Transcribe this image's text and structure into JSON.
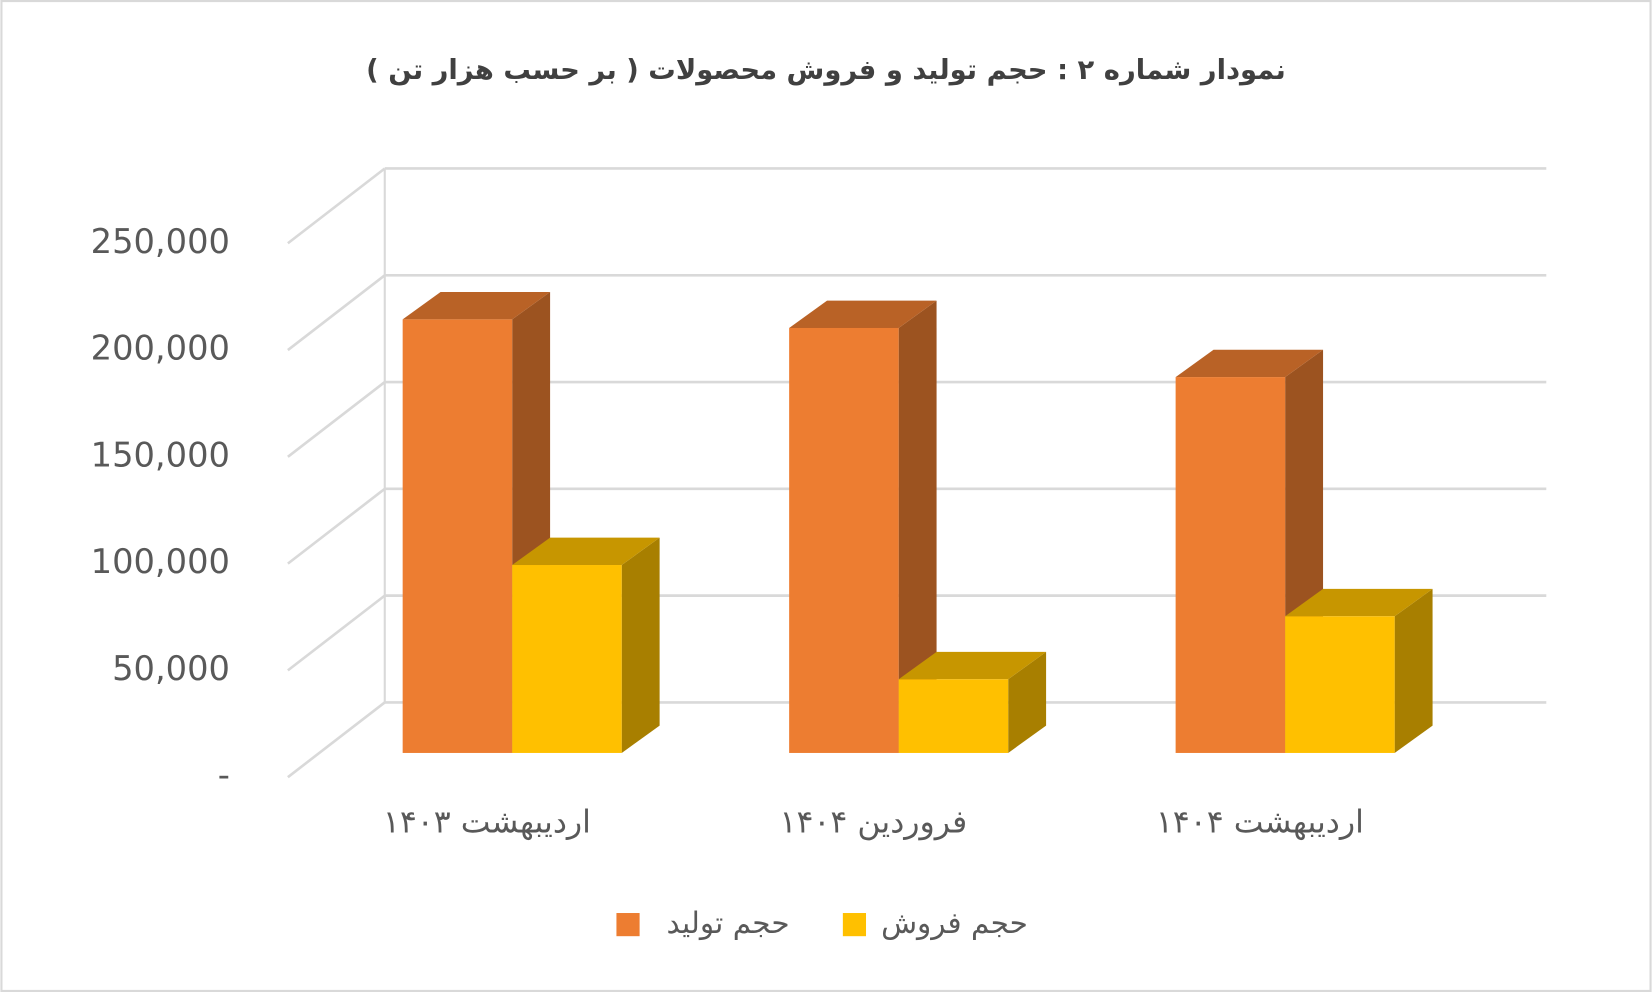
{
  "chart_data": {
    "type": "bar3d",
    "title": "نمودار شماره ۲ : حجم  تولید و فروش محصولات ( بر حسب هزار تن )",
    "categories": [
      "اردیبهشت ۱۴۰۳",
      "فروردین ۱۴۰۴",
      "اردیبهشت ۱۴۰۴"
    ],
    "series": [
      {
        "name": "حجم تولید",
        "color": "#ed7d31",
        "values": [
          203000,
          199000,
          176000
        ]
      },
      {
        "name": "حجم فروش",
        "color": "#ffc000",
        "values": [
          88000,
          34500,
          64000
        ]
      }
    ],
    "ylim": [
      0,
      250000
    ],
    "yticks": [
      {
        "value": 0,
        "label": "-"
      },
      {
        "value": 50000,
        "label": "50,000"
      },
      {
        "value": 100000,
        "label": "100,000"
      },
      {
        "value": 150000,
        "label": "150,000"
      },
      {
        "value": 200000,
        "label": "200,000"
      },
      {
        "value": 250000,
        "label": "250,000"
      }
    ],
    "grid": true
  }
}
